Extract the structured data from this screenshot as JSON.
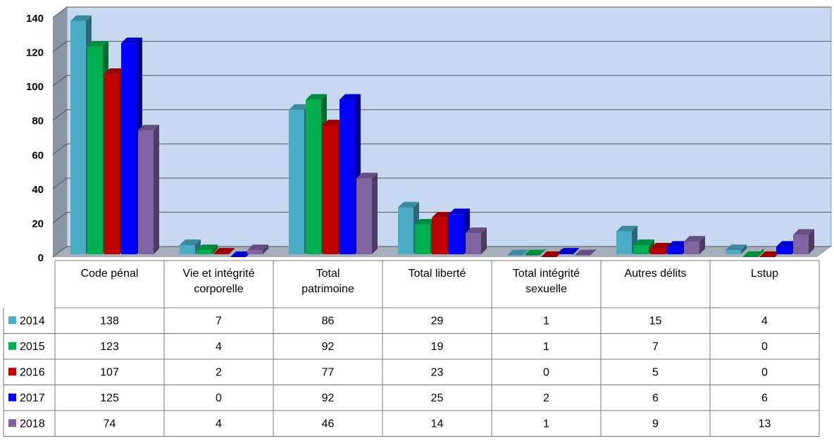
{
  "chart_data": {
    "type": "bar3d",
    "categories": [
      "Code pénal",
      "Vie et intégrité corporelle",
      "Total patrimoine",
      "Total liberté",
      "Total intégrité sexuelle",
      "Autres délits",
      "Lstup"
    ],
    "series": [
      {
        "name": "2014",
        "color": "#4bacc6",
        "values": [
          138,
          7,
          86,
          29,
          1,
          15,
          4
        ]
      },
      {
        "name": "2015",
        "color": "#00b050",
        "values": [
          123,
          4,
          92,
          19,
          1,
          7,
          0
        ]
      },
      {
        "name": "2016",
        "color": "#c00000",
        "values": [
          107,
          2,
          77,
          23,
          0,
          5,
          0
        ]
      },
      {
        "name": "2017",
        "color": "#0000ff",
        "values": [
          125,
          0,
          92,
          25,
          2,
          6,
          6
        ]
      },
      {
        "name": "2018",
        "color": "#8064a2",
        "values": [
          74,
          4,
          46,
          14,
          1,
          9,
          13
        ]
      }
    ],
    "ylim": [
      0,
      140
    ],
    "yticks": [
      0,
      20,
      40,
      60,
      80,
      100,
      120,
      140
    ],
    "grid": true
  }
}
